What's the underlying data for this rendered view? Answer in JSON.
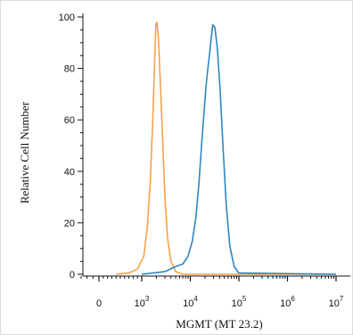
{
  "chart_data": {
    "type": "line",
    "title": "",
    "xlabel": "MGMT (MT 23.2)",
    "ylabel": "Relative Cell Number",
    "x_scale": "log",
    "xlim": [
      -300,
      10000000
    ],
    "ylim": [
      0,
      100
    ],
    "grid": false,
    "legend": "none",
    "x_ticks": [
      {
        "value": 0,
        "label": "0",
        "exp": ""
      },
      {
        "value": 1000,
        "label": "10",
        "exp": "3"
      },
      {
        "value": 10000,
        "label": "10",
        "exp": "4"
      },
      {
        "value": 100000,
        "label": "10",
        "exp": "5"
      },
      {
        "value": 1000000,
        "label": "10",
        "exp": "6"
      },
      {
        "value": 10000000,
        "label": "10",
        "exp": "7"
      }
    ],
    "y_ticks": [
      0,
      20,
      40,
      60,
      80,
      100
    ],
    "series": [
      {
        "color": "#f5a24b",
        "x": [
          400,
          700,
          900,
          1100,
          1300,
          1500,
          1700,
          1850,
          1950,
          2050,
          2200,
          2400,
          2700,
          3000,
          3400,
          4000,
          5000,
          7000,
          10000000
        ],
        "y": [
          0,
          0.5,
          2,
          7,
          18,
          36,
          62,
          84,
          97,
          98,
          92,
          76,
          52,
          30,
          14,
          5,
          1,
          0,
          0
        ]
      },
      {
        "color": "#2e86c1",
        "x": [
          1000,
          3000,
          5000,
          7000,
          9000,
          11000,
          13000,
          15000,
          17000,
          19000,
          21000,
          23000,
          25000,
          27000,
          29000,
          32000,
          36000,
          41000,
          47000,
          55000,
          65000,
          80000,
          100000,
          10000000
        ],
        "y": [
          0,
          1,
          3,
          4,
          7,
          13,
          22,
          35,
          50,
          62,
          73,
          80,
          86,
          92,
          97,
          96,
          88,
          72,
          50,
          27,
          11,
          3,
          0.5,
          0
        ]
      }
    ]
  }
}
